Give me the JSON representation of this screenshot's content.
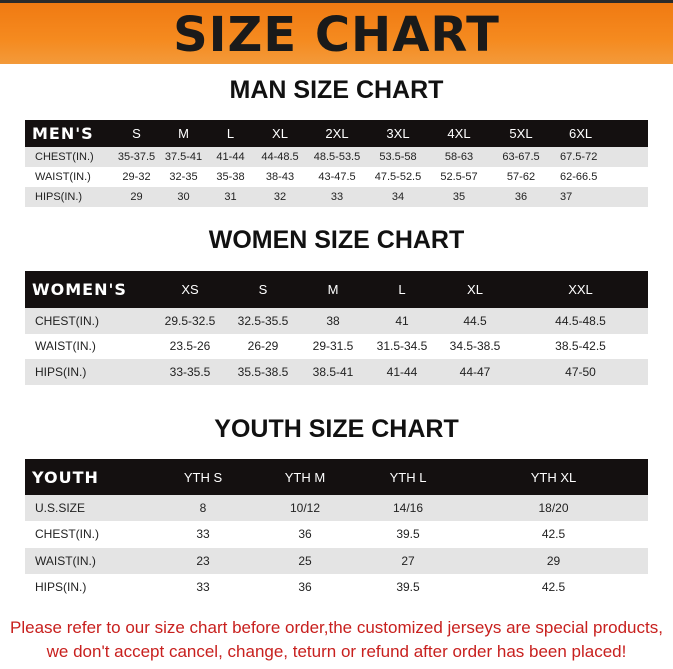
{
  "banner": {
    "title": "SIZE CHART"
  },
  "men": {
    "title": "MAN SIZE CHART",
    "header": [
      "MEN'S",
      "S",
      "M",
      "L",
      "XL",
      "2XL",
      "3XL",
      "4XL",
      "5XL",
      "6XL"
    ],
    "rows": [
      [
        "CHEST(IN.)",
        "35-37.5",
        "37.5-41",
        "41-44",
        "44-48.5",
        "48.5-53.5",
        "53.5-58",
        "58-63",
        "63-67.5",
        "67.5-72"
      ],
      [
        "WAIST(IN.)",
        "29-32",
        "32-35",
        "35-38",
        "38-43",
        "43-47.5",
        "47.5-52.5",
        "52.5-57",
        "57-62",
        "62-66.5"
      ],
      [
        "HIPS(IN.)",
        "29",
        "30",
        "31",
        "32",
        "33",
        "34",
        "35",
        "36",
        "37"
      ]
    ]
  },
  "women": {
    "title": "WOMEN SIZE CHART",
    "header": [
      "WOMEN'S",
      "XS",
      "S",
      "M",
      "L",
      "XL",
      "XXL"
    ],
    "rows": [
      [
        "CHEST(IN.)",
        "29.5-32.5",
        "32.5-35.5",
        "38",
        "41",
        "44.5",
        "44.5-48.5"
      ],
      [
        "WAIST(IN.)",
        "23.5-26",
        "26-29",
        "29-31.5",
        "31.5-34.5",
        "34.5-38.5",
        "38.5-42.5"
      ],
      [
        "HIPS(IN.)",
        "33-35.5",
        "35.5-38.5",
        "38.5-41",
        "41-44",
        "44-47",
        "47-50"
      ]
    ]
  },
  "youth": {
    "title": "YOUTH SIZE CHART",
    "header": [
      "YOUTH",
      "YTH S",
      "YTH M",
      "YTH L",
      "YTH XL"
    ],
    "rows": [
      [
        "U.S.SIZE",
        "8",
        "10/12",
        "14/16",
        "18/20"
      ],
      [
        "CHEST(IN.)",
        "33",
        "36",
        "39.5",
        "42.5"
      ],
      [
        "WAIST(IN.)",
        "23",
        "25",
        "27",
        "29"
      ],
      [
        "HIPS(IN.)",
        "33",
        "36",
        "39.5",
        "42.5"
      ]
    ]
  },
  "notice": {
    "line1": "Please refer to our size chart before order,the customized jerseys are special products,",
    "line2": "we don't accept cancel, change, teturn or refund after order has been placed!"
  },
  "colors": {
    "banner": "#f58a1f",
    "header_bg": "#141010",
    "row_alt": "#e4e4e4",
    "notice": "#c8201e"
  }
}
